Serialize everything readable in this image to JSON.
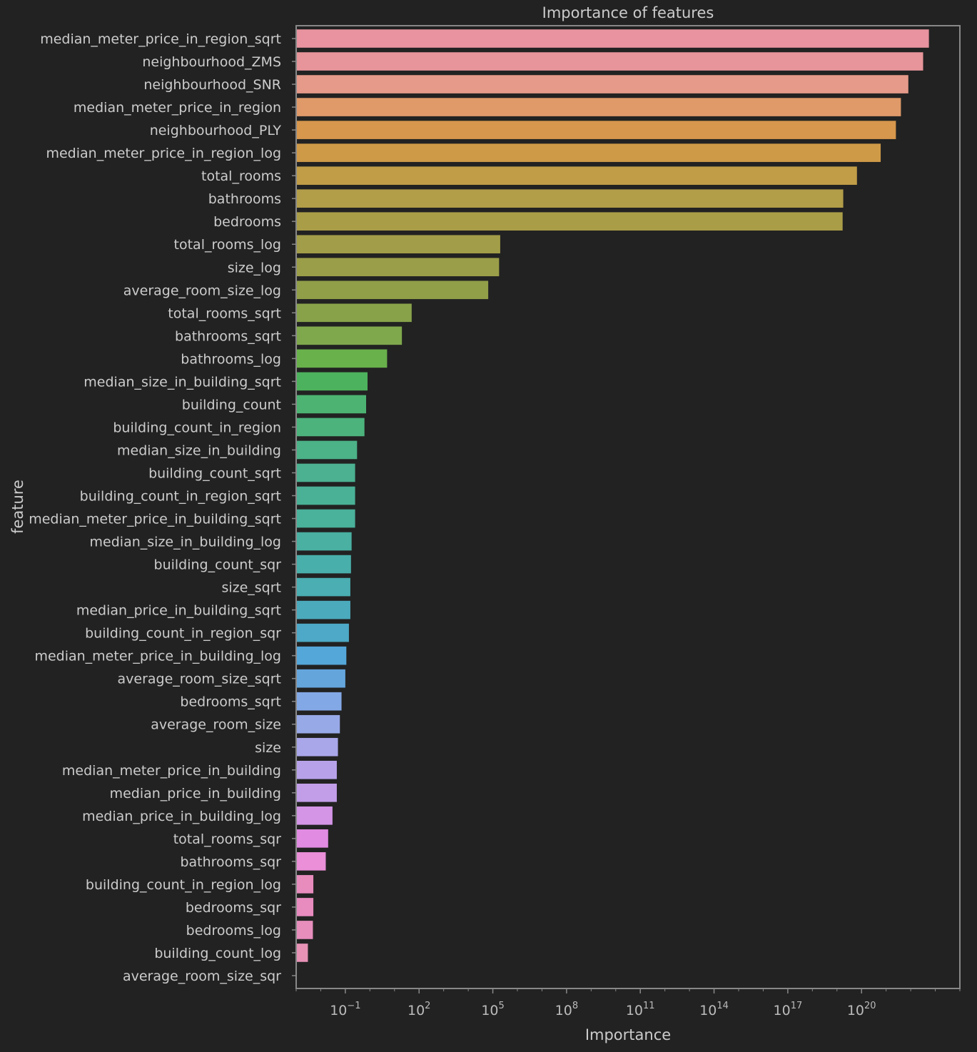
{
  "chart_data": {
    "type": "bar",
    "orientation": "horizontal",
    "title": "Importance of features",
    "xlabel": "Importance",
    "ylabel": "feature",
    "xscale": "log",
    "xlim": [
      0.001,
      1e+24
    ],
    "xticks": [
      {
        "value": 0.1,
        "base": "10",
        "exp": "−1"
      },
      {
        "value": 100,
        "base": "10",
        "exp": "2"
      },
      {
        "value": 100000,
        "base": "10",
        "exp": "5"
      },
      {
        "value": 100000000.0,
        "base": "10",
        "exp": "8"
      },
      {
        "value": 100000000000.0,
        "base": "10",
        "exp": "11"
      },
      {
        "value": 100000000000000.0,
        "base": "10",
        "exp": "14"
      },
      {
        "value": 1e+17,
        "base": "10",
        "exp": "17"
      },
      {
        "value": 1e+20,
        "base": "10",
        "exp": "20"
      }
    ],
    "grid": false,
    "categories": [
      "median_meter_price_in_region_sqrt",
      "neighbourhood_ZMS",
      "neighbourhood_SNR",
      "median_meter_price_in_region",
      "neighbourhood_PLY",
      "median_meter_price_in_region_log",
      "total_rooms",
      "bathrooms",
      "bedrooms",
      "total_rooms_log",
      "size_log",
      "average_room_size_log",
      "total_rooms_sqrt",
      "bathrooms_sqrt",
      "bathrooms_log",
      "median_size_in_building_sqrt",
      "building_count",
      "building_count_in_region",
      "median_size_in_building",
      "building_count_sqrt",
      "building_count_in_region_sqrt",
      "median_meter_price_in_building_sqrt",
      "median_size_in_building_log",
      "building_count_sqr",
      "size_sqrt",
      "median_price_in_building_sqrt",
      "building_count_in_region_sqr",
      "median_meter_price_in_building_log",
      "average_room_size_sqrt",
      "bedrooms_sqrt",
      "average_room_size",
      "size",
      "median_meter_price_in_building",
      "median_price_in_building",
      "median_price_in_building_log",
      "total_rooms_sqr",
      "bathrooms_sqr",
      "building_count_in_region_log",
      "bedrooms_sqr",
      "bedrooms_log",
      "building_count_log",
      "average_room_size_sqr"
    ],
    "values": [
      5.5e+22,
      3.2e+22,
      8e+21,
      4e+21,
      2.5e+21,
      6e+20,
      6.5e+19,
      1.8e+19,
      1.7e+19,
      200000,
      180000,
      65000,
      50,
      20,
      5,
      0.8,
      0.7,
      0.6,
      0.3,
      0.25,
      0.25,
      0.25,
      0.18,
      0.17,
      0.16,
      0.16,
      0.14,
      0.11,
      0.1,
      0.07,
      0.06,
      0.05,
      0.045,
      0.045,
      0.03,
      0.02,
      0.016,
      0.005,
      0.005,
      0.0048,
      0.003,
      0.0004
    ],
    "colors": [
      "#e8939f",
      "#e7959a",
      "#e69a8a",
      "#e09a6a",
      "#d7974c",
      "#cf9a48",
      "#c19d48",
      "#b29d48",
      "#aa9d48",
      "#a29d48",
      "#9b9e48",
      "#919f48",
      "#88a24a",
      "#7fa84c",
      "#69b14b",
      "#4db25d",
      "#4cb372",
      "#4cb37c",
      "#4cb288",
      "#4bb190",
      "#4ab196",
      "#4ab19b",
      "#49b0a2",
      "#49afaa",
      "#4aaeb2",
      "#4babbd",
      "#4da9c7",
      "#54a7d9",
      "#64a5dc",
      "#83a8e6",
      "#98a9e8",
      "#a9a7ea",
      "#b7a2ea",
      "#c29ee9",
      "#d495e6",
      "#e18be2",
      "#ea8fd8",
      "#e88cbe",
      "#e88bbf",
      "#e78ebd",
      "#e892b6",
      "#e899a8"
    ]
  }
}
